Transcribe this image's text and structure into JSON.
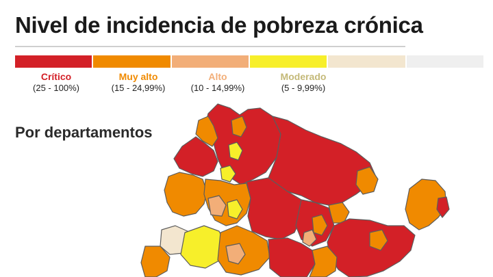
{
  "title": "Nivel de incidencia de pobreza crónica",
  "section_title": "Por departamentos",
  "colors": {
    "critico": "#d32027",
    "muy_alto": "#f08a00",
    "alto": "#f2ae78",
    "moderado": "#f7ef2a",
    "bajo": "#f3e6cf",
    "sin_dato": "#efefef",
    "border": "#5c5c5c"
  },
  "legend": [
    {
      "label": "Crítico",
      "range": "(25 - 100%)",
      "color": "#d32027",
      "label_color": "#d32027"
    },
    {
      "label": "Muy alto",
      "range": "(15 - 24,99%)",
      "color": "#f08a00",
      "label_color": "#f08a00"
    },
    {
      "label": "Alto",
      "range": "(10 - 14,99%)",
      "color": "#f2ae78",
      "label_color": "#f2ae78"
    },
    {
      "label": "Moderado",
      "range": "(5 - 9,99%)",
      "color": "#f7ef2a",
      "label_color": "#c4b978"
    },
    {
      "label": "",
      "range": "",
      "color": "#f3e6cf",
      "label_color": "#999999"
    },
    {
      "label": "",
      "range": "",
      "color": "#efefef",
      "label_color": "#999999"
    }
  ]
}
